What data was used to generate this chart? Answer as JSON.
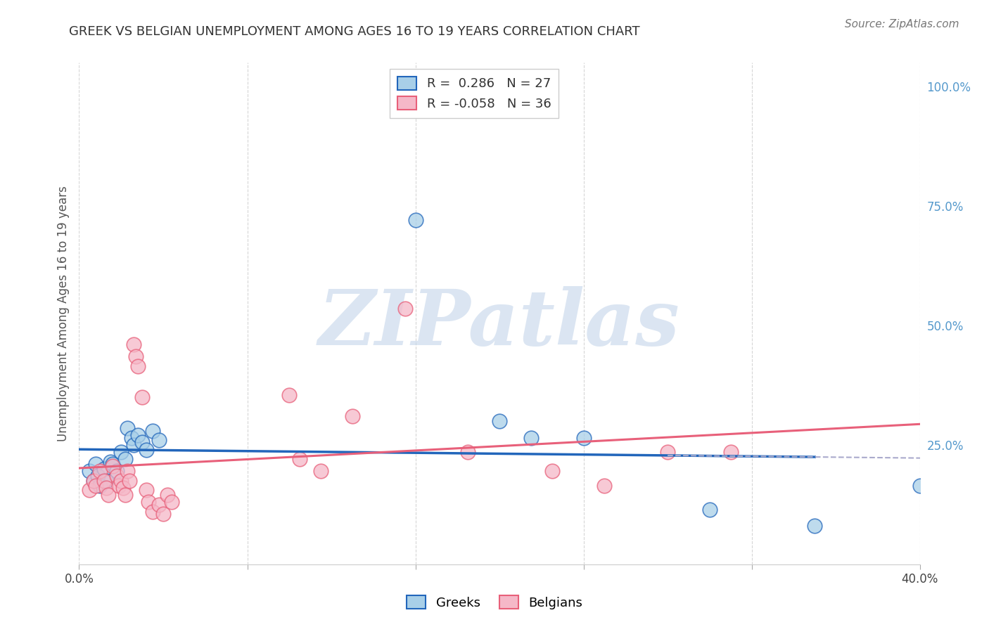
{
  "title": "GREEK VS BELGIAN UNEMPLOYMENT AMONG AGES 16 TO 19 YEARS CORRELATION CHART",
  "source": "Source: ZipAtlas.com",
  "ylabel": "Unemployment Among Ages 16 to 19 years",
  "xlim": [
    0.0,
    0.4
  ],
  "ylim": [
    0.0,
    1.05
  ],
  "yticks": [
    0.25,
    0.5,
    0.75,
    1.0
  ],
  "ytick_labels": [
    "25.0%",
    "50.0%",
    "75.0%",
    "100.0%"
  ],
  "greek_R": 0.286,
  "greek_N": 27,
  "belgian_R": -0.058,
  "belgian_N": 36,
  "greek_color": "#a8cfe8",
  "belgian_color": "#f5b8c8",
  "greek_line_color": "#2266bb",
  "belgian_line_color": "#e8607a",
  "watermark": "ZIPatlas",
  "watermark_color": "#c8d8eb",
  "background_color": "#ffffff",
  "greek_points": [
    [
      0.005,
      0.195
    ],
    [
      0.007,
      0.175
    ],
    [
      0.008,
      0.21
    ],
    [
      0.009,
      0.185
    ],
    [
      0.01,
      0.165
    ],
    [
      0.012,
      0.2
    ],
    [
      0.013,
      0.175
    ],
    [
      0.015,
      0.215
    ],
    [
      0.016,
      0.21
    ],
    [
      0.018,
      0.195
    ],
    [
      0.02,
      0.235
    ],
    [
      0.022,
      0.22
    ],
    [
      0.023,
      0.285
    ],
    [
      0.025,
      0.265
    ],
    [
      0.026,
      0.25
    ],
    [
      0.028,
      0.27
    ],
    [
      0.03,
      0.255
    ],
    [
      0.032,
      0.24
    ],
    [
      0.035,
      0.28
    ],
    [
      0.038,
      0.26
    ],
    [
      0.16,
      0.72
    ],
    [
      0.2,
      0.3
    ],
    [
      0.215,
      0.265
    ],
    [
      0.24,
      0.265
    ],
    [
      0.3,
      0.115
    ],
    [
      0.35,
      0.08
    ],
    [
      0.4,
      0.165
    ]
  ],
  "belgian_points": [
    [
      0.005,
      0.155
    ],
    [
      0.007,
      0.175
    ],
    [
      0.008,
      0.165
    ],
    [
      0.01,
      0.195
    ],
    [
      0.012,
      0.175
    ],
    [
      0.013,
      0.16
    ],
    [
      0.014,
      0.145
    ],
    [
      0.016,
      0.205
    ],
    [
      0.018,
      0.185
    ],
    [
      0.019,
      0.165
    ],
    [
      0.02,
      0.175
    ],
    [
      0.021,
      0.16
    ],
    [
      0.022,
      0.145
    ],
    [
      0.023,
      0.195
    ],
    [
      0.024,
      0.175
    ],
    [
      0.026,
      0.46
    ],
    [
      0.027,
      0.435
    ],
    [
      0.028,
      0.415
    ],
    [
      0.03,
      0.35
    ],
    [
      0.032,
      0.155
    ],
    [
      0.033,
      0.13
    ],
    [
      0.035,
      0.11
    ],
    [
      0.038,
      0.125
    ],
    [
      0.04,
      0.105
    ],
    [
      0.042,
      0.145
    ],
    [
      0.044,
      0.13
    ],
    [
      0.1,
      0.355
    ],
    [
      0.105,
      0.22
    ],
    [
      0.115,
      0.195
    ],
    [
      0.13,
      0.31
    ],
    [
      0.155,
      0.535
    ],
    [
      0.185,
      0.235
    ],
    [
      0.225,
      0.195
    ],
    [
      0.25,
      0.165
    ],
    [
      0.28,
      0.235
    ],
    [
      0.31,
      0.235
    ]
  ]
}
